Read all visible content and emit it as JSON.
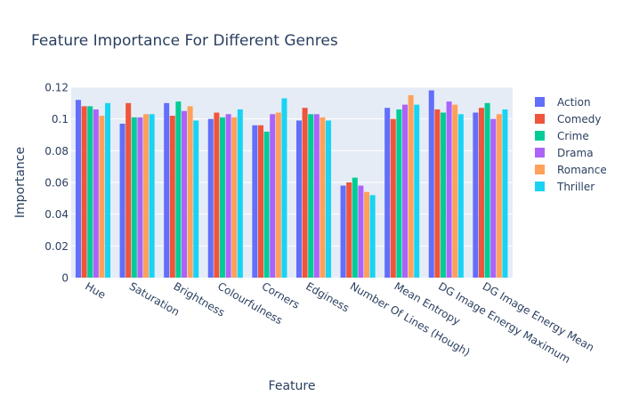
{
  "chart_data": {
    "type": "bar",
    "title": "Feature Importance For Different Genres",
    "xlabel": "Feature",
    "ylabel": "Importance",
    "ylim": [
      0,
      0.12
    ],
    "yticks": [
      0,
      0.02,
      0.04,
      0.06,
      0.08,
      0.1,
      0.12
    ],
    "ytick_labels": [
      "0",
      "0.02",
      "0.04",
      "0.06",
      "0.08",
      "0.1",
      "0.12"
    ],
    "grid": true,
    "legend_position": "right",
    "categories": [
      "Hue",
      "Saturation",
      "Brightness",
      "Colourfulness",
      "Corners",
      "Edginess",
      "Number Of Lines (Hough)",
      "Mean Entropy",
      "DG Image Energy Maximum",
      "DG Image Energy Mean"
    ],
    "series": [
      {
        "name": "Action",
        "color": "#636efa",
        "values": [
          0.112,
          0.097,
          0.11,
          0.1,
          0.096,
          0.099,
          0.058,
          0.107,
          0.118,
          0.104
        ]
      },
      {
        "name": "Comedy",
        "color": "#ef553b",
        "values": [
          0.108,
          0.11,
          0.102,
          0.104,
          0.096,
          0.107,
          0.06,
          0.1,
          0.106,
          0.107
        ]
      },
      {
        "name": "Crime",
        "color": "#00cc96",
        "values": [
          0.108,
          0.101,
          0.111,
          0.101,
          0.092,
          0.103,
          0.063,
          0.106,
          0.104,
          0.11
        ]
      },
      {
        "name": "Drama",
        "color": "#ab63fa",
        "values": [
          0.106,
          0.101,
          0.105,
          0.103,
          0.103,
          0.103,
          0.058,
          0.109,
          0.111,
          0.1
        ]
      },
      {
        "name": "Romance",
        "color": "#ffa15a",
        "values": [
          0.102,
          0.103,
          0.108,
          0.101,
          0.104,
          0.101,
          0.054,
          0.115,
          0.109,
          0.103
        ]
      },
      {
        "name": "Thriller",
        "color": "#19d3f3",
        "values": [
          0.11,
          0.103,
          0.099,
          0.106,
          0.113,
          0.099,
          0.052,
          0.109,
          0.103,
          0.106
        ]
      }
    ]
  },
  "colors": {
    "plot_background": "#e5ecf6",
    "grid": "#ffffff",
    "text": "#2a3f5f"
  }
}
